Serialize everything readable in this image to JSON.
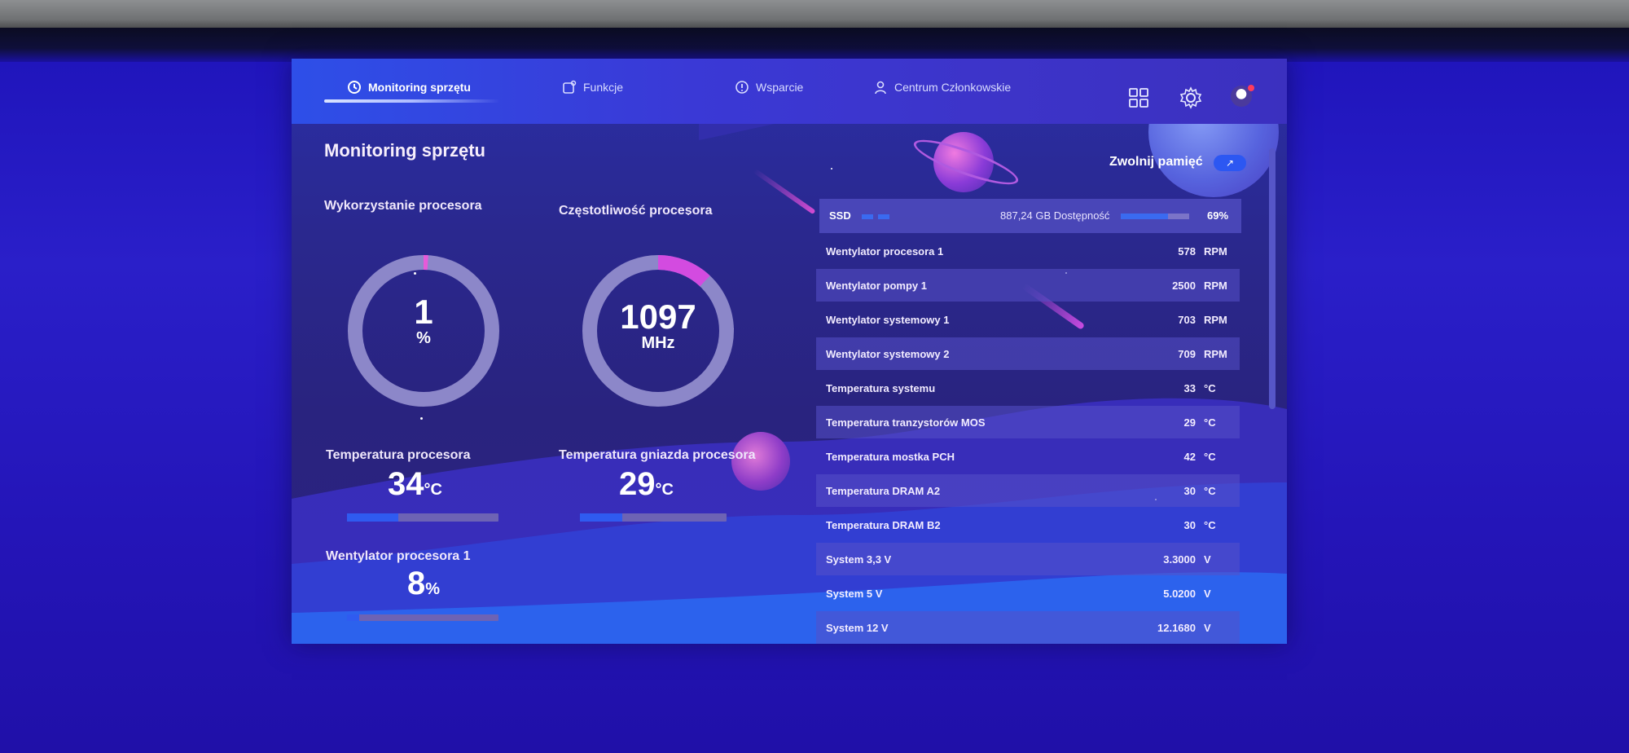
{
  "nav": {
    "tabs": [
      {
        "label": "Monitoring sprzętu",
        "icon": "monitor-icon"
      },
      {
        "label": "Funkcje",
        "icon": "functions-icon"
      },
      {
        "label": "Wsparcie",
        "icon": "support-icon"
      },
      {
        "label": "Centrum Członkowskie",
        "icon": "user-icon"
      }
    ],
    "right_icons": [
      "grid-icon",
      "gear-icon",
      "avatar"
    ]
  },
  "page": {
    "title": "Monitoring sprzętu",
    "free_memory_label": "Zwolnij pamięć"
  },
  "cpu_usage": {
    "label": "Wykorzystanie procesora",
    "value": "1",
    "unit": "%",
    "fraction": 0.01
  },
  "cpu_freq": {
    "label": "Częstotliwość procesora",
    "value": "1097",
    "unit": "MHz",
    "fraction": 0.12
  },
  "cpu_temp": {
    "label": "Temperatura procesora",
    "value": "34",
    "unit": "°C",
    "fraction": 0.34
  },
  "socket_temp": {
    "label": "Temperatura gniazda procesora",
    "value": "29",
    "unit": "°C",
    "fraction": 0.29
  },
  "cpu_fan": {
    "label": "Wentylator procesora 1",
    "value": "8",
    "unit": "%",
    "fraction": 0.08
  },
  "ssd": {
    "label": "SSD",
    "available": "887,24 GB Dostępność",
    "percent": "69%",
    "fraction": 0.69
  },
  "sensors": [
    {
      "name": "Wentylator procesora 1",
      "value": "578",
      "unit": "RPM"
    },
    {
      "name": "Wentylator pompy 1",
      "value": "2500",
      "unit": "RPM"
    },
    {
      "name": "Wentylator systemowy 1",
      "value": "703",
      "unit": "RPM"
    },
    {
      "name": "Wentylator systemowy 2",
      "value": "709",
      "unit": "RPM"
    },
    {
      "name": "Temperatura systemu",
      "value": "33",
      "unit": "°C"
    },
    {
      "name": "Temperatura tranzystorów MOS",
      "value": "29",
      "unit": "°C"
    },
    {
      "name": "Temperatura mostka PCH",
      "value": "42",
      "unit": "°C"
    },
    {
      "name": "Temperatura DRAM A2",
      "value": "30",
      "unit": "°C"
    },
    {
      "name": "Temperatura DRAM B2",
      "value": "30",
      "unit": "°C"
    },
    {
      "name": "System 3,3 V",
      "value": "3.3000",
      "unit": "V"
    },
    {
      "name": "System 5 V",
      "value": "5.0200",
      "unit": "V"
    },
    {
      "name": "System 12 V",
      "value": "12.1680",
      "unit": "V"
    }
  ]
}
